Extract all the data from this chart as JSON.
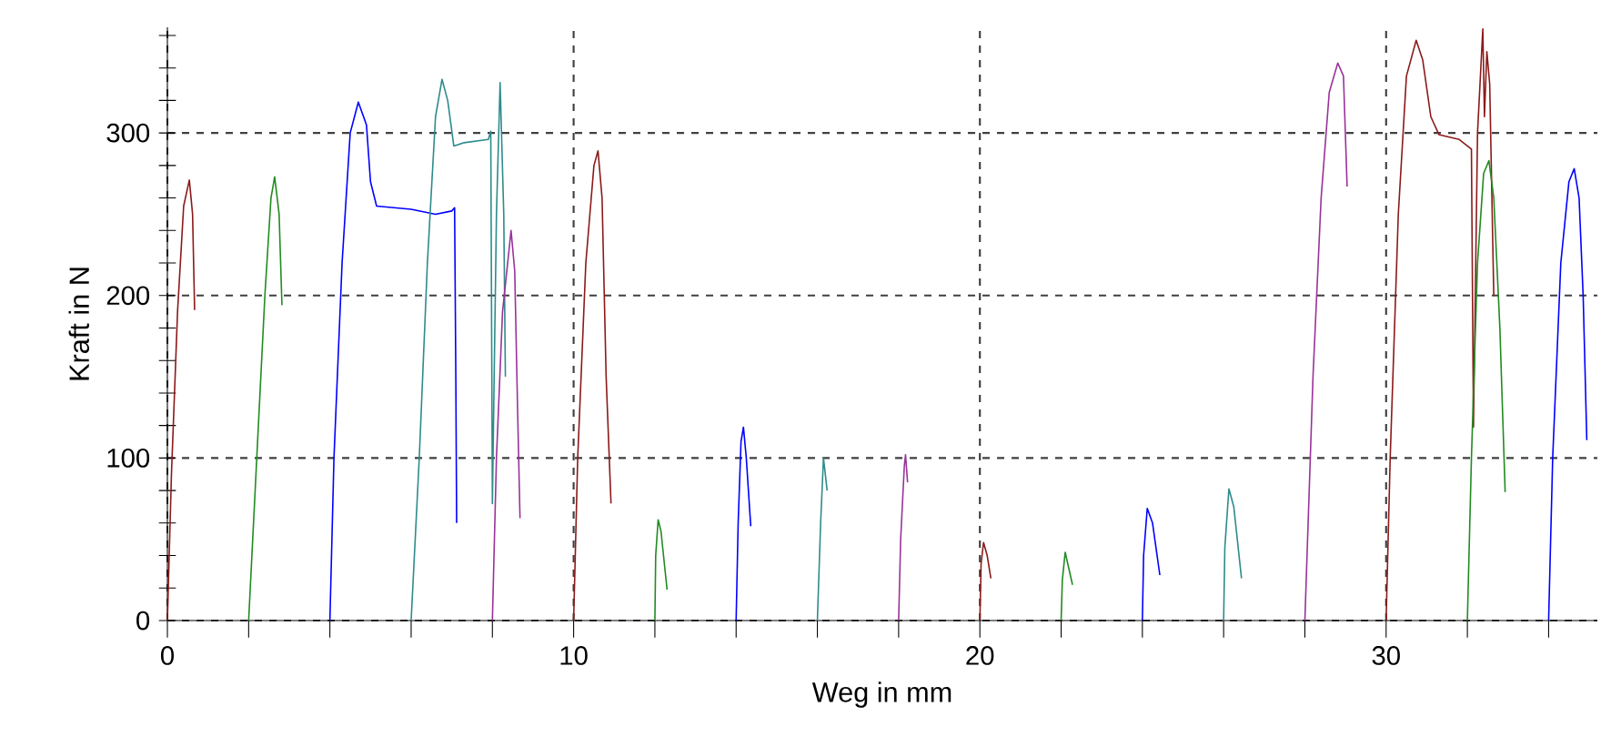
{
  "chart_data": {
    "type": "line",
    "xlabel": "Weg in mm",
    "ylabel": "Kraft in N",
    "xlim": [
      0,
      35.2
    ],
    "ylim": [
      0,
      365
    ],
    "xticks": [
      0,
      {
        "value": 2,
        "label": null
      },
      {
        "value": 4,
        "label": null
      },
      {
        "value": 6,
        "label": null
      },
      {
        "value": 8,
        "label": null
      },
      10,
      {
        "value": 12,
        "label": null
      },
      {
        "value": 14,
        "label": null
      },
      {
        "value": 16,
        "label": null
      },
      {
        "value": 18,
        "label": null
      },
      20,
      {
        "value": 22,
        "label": null
      },
      {
        "value": 24,
        "label": null
      },
      {
        "value": 26,
        "label": null
      },
      {
        "value": 28,
        "label": null
      },
      30,
      {
        "value": 32,
        "label": null
      },
      {
        "value": 34,
        "label": null
      }
    ],
    "yticks": [
      0,
      {
        "value": 20,
        "label": null
      },
      {
        "value": 40,
        "label": null
      },
      {
        "value": 60,
        "label": null
      },
      {
        "value": 80,
        "label": null
      },
      100,
      {
        "value": 120,
        "label": null
      },
      {
        "value": 140,
        "label": null
      },
      {
        "value": 160,
        "label": null
      },
      {
        "value": 180,
        "label": null
      },
      200,
      {
        "value": 220,
        "label": null
      },
      {
        "value": 240,
        "label": null
      },
      {
        "value": 260,
        "label": null
      },
      {
        "value": 280,
        "label": null
      },
      300,
      {
        "value": 320,
        "label": null
      },
      {
        "value": 340,
        "label": null
      },
      {
        "value": 360,
        "label": null
      }
    ],
    "grid": true,
    "line_style": "solid",
    "series": [
      {
        "color": "#8b1a1a",
        "x": [
          0,
          0.1,
          0.25,
          0.4,
          0.54,
          0.62,
          0.67
        ],
        "values": [
          0,
          90,
          190,
          255,
          271,
          250,
          191
        ]
      },
      {
        "color": "#228b22",
        "x": [
          2,
          2.2,
          2.4,
          2.55,
          2.64,
          2.75,
          2.82
        ],
        "values": [
          0,
          100,
          200,
          260,
          273,
          250,
          194
        ]
      },
      {
        "color": "#0000ff",
        "x": [
          4,
          4.1,
          4.3,
          4.5,
          4.7,
          4.9,
          5.0,
          5.15,
          6.0,
          6.6,
          7.0,
          7.07,
          7.1,
          7.12
        ],
        "values": [
          0,
          100,
          220,
          300,
          319,
          305,
          270,
          255,
          253,
          250,
          252,
          254,
          150,
          60
        ]
      },
      {
        "color": "#2e8b8b",
        "x": [
          6,
          6.2,
          6.4,
          6.6,
          6.76,
          6.9,
          7.05,
          7.3,
          7.9,
          7.96,
          8.0,
          8.1,
          8.19,
          8.28,
          8.32
        ],
        "values": [
          0,
          100,
          220,
          310,
          333,
          320,
          292,
          294,
          296,
          301,
          72,
          250,
          331,
          250,
          150
        ]
      },
      {
        "color": "#993399",
        "x": [
          8,
          8.1,
          8.25,
          8.46,
          8.55,
          8.62,
          8.68
        ],
        "values": [
          0,
          100,
          190,
          240,
          215,
          130,
          63
        ]
      },
      {
        "color": "#8b1a1a",
        "x": [
          10,
          10.1,
          10.3,
          10.5,
          10.6,
          10.7,
          10.8,
          10.92
        ],
        "values": [
          0,
          100,
          220,
          280,
          289,
          260,
          150,
          72
        ]
      },
      {
        "color": "#228b22",
        "x": [
          12,
          12.02,
          12.08,
          12.15,
          12.3
        ],
        "values": [
          0,
          40,
          62,
          55,
          19
        ]
      },
      {
        "color": "#0000ff",
        "x": [
          14,
          14.05,
          14.12,
          14.18,
          14.25,
          14.36
        ],
        "values": [
          0,
          60,
          110,
          119,
          100,
          58
        ]
      },
      {
        "color": "#2e8b8b",
        "x": [
          16,
          16.08,
          16.15,
          16.24
        ],
        "values": [
          0,
          60,
          100,
          80
        ]
      },
      {
        "color": "#993399",
        "x": [
          18,
          18.05,
          18.14,
          18.17,
          18.22
        ],
        "values": [
          0,
          50,
          95,
          102,
          85
        ]
      },
      {
        "color": "#8b1a1a",
        "x": [
          20,
          20.03,
          20.09,
          20.18,
          20.27
        ],
        "values": [
          0,
          35,
          48,
          40,
          26
        ]
      },
      {
        "color": "#228b22",
        "x": [
          22,
          22.03,
          22.1,
          22.28
        ],
        "values": [
          0,
          25,
          42,
          22
        ]
      },
      {
        "color": "#0000ff",
        "x": [
          24,
          24.03,
          24.12,
          24.25,
          24.43
        ],
        "values": [
          0,
          40,
          69,
          60,
          28
        ]
      },
      {
        "color": "#2e8b8b",
        "x": [
          26,
          26.03,
          26.13,
          26.25,
          26.44
        ],
        "values": [
          0,
          45,
          81,
          70,
          26
        ]
      },
      {
        "color": "#993399",
        "x": [
          28,
          28.2,
          28.4,
          28.6,
          28.81,
          28.95,
          29.04
        ],
        "values": [
          0,
          150,
          260,
          325,
          343,
          335,
          267
        ]
      },
      {
        "color": "#8b1a1a",
        "x": [
          30,
          30.1,
          30.3,
          30.5,
          30.74,
          30.9,
          31.1,
          31.3,
          31.8,
          32.1,
          32.15,
          32.25,
          32.38,
          32.42,
          32.48,
          32.55,
          32.65
        ],
        "values": [
          0,
          100,
          250,
          335,
          357,
          345,
          310,
          299,
          296,
          290,
          119,
          300,
          364,
          310,
          350,
          330,
          200
        ]
      },
      {
        "color": "#228b22",
        "x": [
          32,
          32.1,
          32.25,
          32.4,
          32.53,
          32.65,
          32.8,
          32.93
        ],
        "values": [
          0,
          100,
          220,
          275,
          283,
          260,
          180,
          79
        ]
      },
      {
        "color": "#0000ff",
        "x": [
          34,
          34.1,
          34.3,
          34.5,
          34.63,
          34.75,
          34.85,
          34.94
        ],
        "values": [
          0,
          100,
          220,
          270,
          278,
          260,
          200,
          111
        ]
      }
    ]
  }
}
